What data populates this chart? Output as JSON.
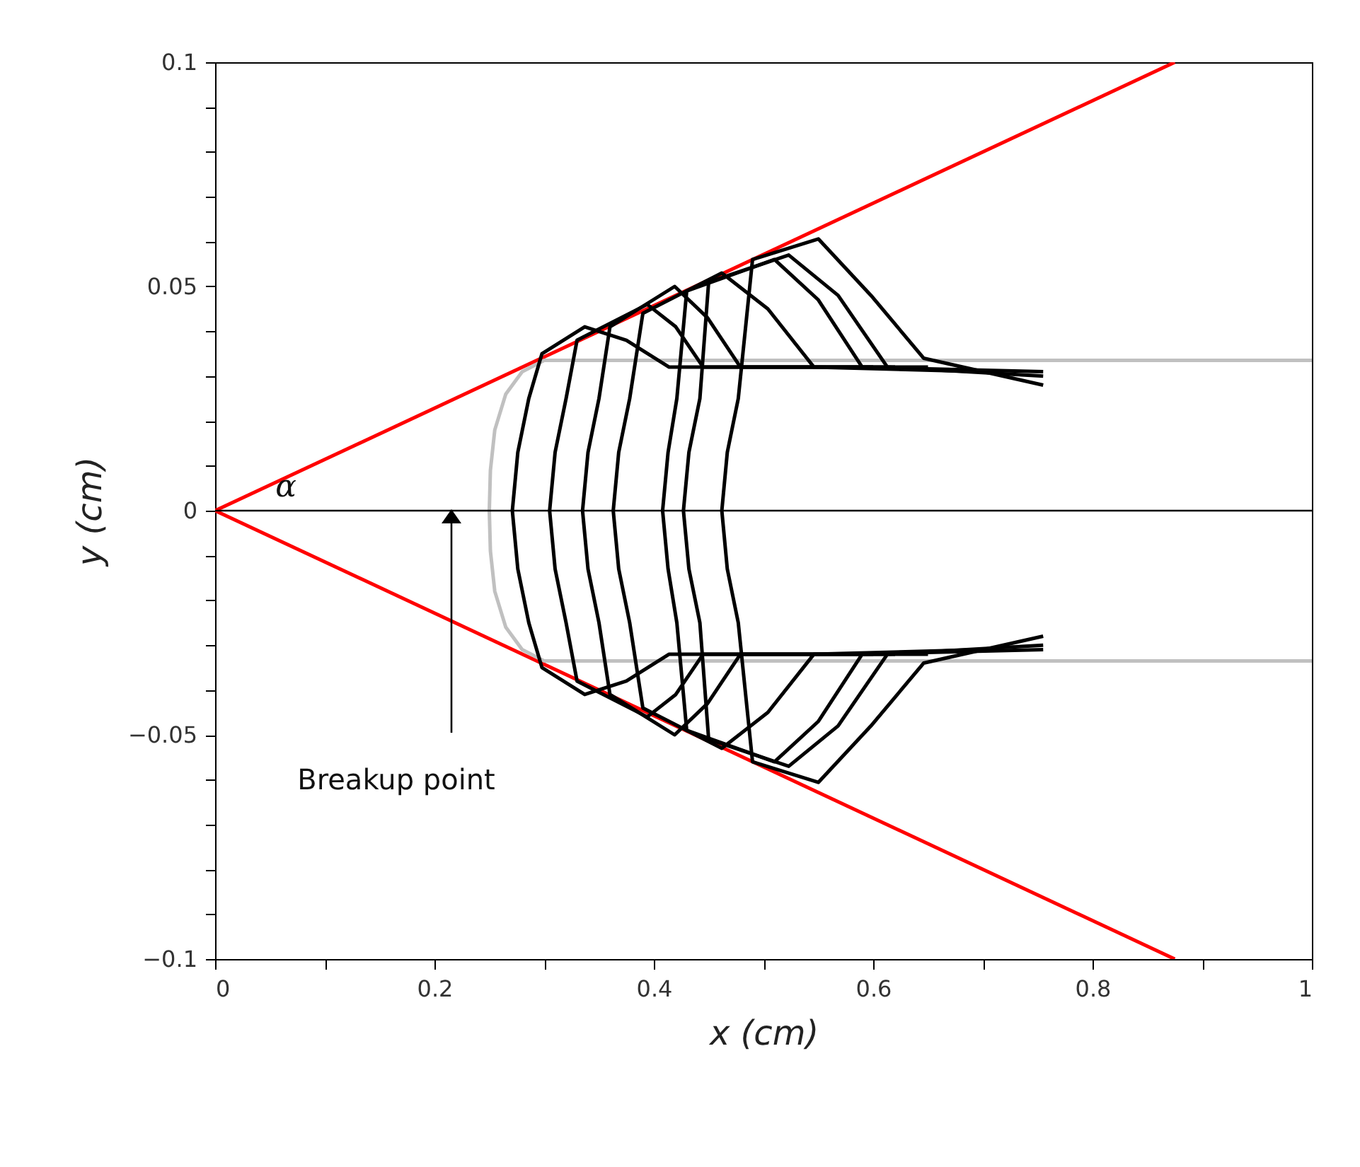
{
  "chart_data": {
    "type": "line",
    "xlabel": "x (cm)",
    "ylabel": "y (cm)",
    "xlim": [
      0,
      1
    ],
    "ylim": [
      -0.1,
      0.1
    ],
    "xticks": [
      0,
      {
        "value": 0.1,
        "label": null
      },
      0.2,
      {
        "value": 0.3,
        "label": null
      },
      0.4,
      {
        "value": 0.5,
        "label": null
      },
      0.6,
      {
        "value": 0.7,
        "label": null
      },
      0.8,
      {
        "value": 0.9,
        "label": null
      },
      1
    ],
    "yticks": [
      {
        "value": -0.1,
        "label": "−0.1"
      },
      {
        "value": -0.09,
        "label": null
      },
      {
        "value": -0.08,
        "label": null
      },
      {
        "value": -0.07,
        "label": null
      },
      {
        "value": -0.06,
        "label": null
      },
      {
        "value": -0.05,
        "label": "−0.05"
      },
      {
        "value": -0.04,
        "label": null
      },
      {
        "value": -0.03,
        "label": null
      },
      {
        "value": -0.02,
        "label": null
      },
      {
        "value": -0.01,
        "label": null
      },
      0,
      {
        "value": 0.01,
        "label": null
      },
      {
        "value": 0.02,
        "label": null
      },
      {
        "value": 0.03,
        "label": null
      },
      {
        "value": 0.04,
        "label": null
      },
      0.05,
      {
        "value": 0.06,
        "label": null
      },
      {
        "value": 0.07,
        "label": null
      },
      {
        "value": 0.08,
        "label": null
      },
      {
        "value": 0.09,
        "label": null
      },
      0.1
    ],
    "series": [
      {
        "color": "#ff0000",
        "x": [
          0,
          0.875
        ],
        "values": [
          0,
          0.1
        ]
      },
      {
        "color": "#ff0000",
        "x": [
          0,
          0.875
        ],
        "values": [
          0,
          -0.1
        ]
      },
      {
        "color": "#c0c0c0",
        "x": [
          1,
          0.3,
          0.28,
          0.265,
          0.255,
          0.251,
          0.25,
          0.251,
          0.255,
          0.265,
          0.28,
          0.3,
          1
        ],
        "values": [
          0.0335,
          0.0335,
          0.031,
          0.026,
          0.018,
          0.009,
          0,
          -0.009,
          -0.018,
          -0.026,
          -0.031,
          -0.0335,
          -0.0335
        ]
      },
      {
        "type": "line",
        "color": "#000000",
        "x": [
          0.6,
          0.414,
          0.375,
          0.337,
          0.298,
          0.286,
          0.276,
          0.271,
          0.276,
          0.286,
          0.298,
          0.337,
          0.375,
          0.414,
          0.6
        ],
        "values": [
          0.032,
          0.032,
          0.038,
          0.041,
          0.035,
          0.025,
          0.013,
          0,
          -0.013,
          -0.025,
          -0.035,
          -0.041,
          -0.038,
          -0.032,
          -0.032
        ]
      },
      {
        "type": "line",
        "color": "#000000",
        "x": [
          0.62,
          0.445,
          0.42,
          0.394,
          0.33,
          0.32,
          0.31,
          0.305,
          0.31,
          0.32,
          0.33,
          0.394,
          0.42,
          0.445,
          0.62
        ],
        "values": [
          0.032,
          0.032,
          0.041,
          0.046,
          0.038,
          0.025,
          0.013,
          0,
          -0.013,
          -0.025,
          -0.038,
          -0.046,
          -0.041,
          -0.032,
          -0.032
        ]
      },
      {
        "type": "line",
        "color": "#000000",
        "x": [
          0.65,
          0.479,
          0.449,
          0.419,
          0.36,
          0.35,
          0.34,
          0.335,
          0.34,
          0.35,
          0.36,
          0.419,
          0.449,
          0.479,
          0.65
        ],
        "values": [
          0.032,
          0.032,
          0.043,
          0.05,
          0.041,
          0.025,
          0.013,
          0,
          -0.013,
          -0.025,
          -0.041,
          -0.05,
          -0.043,
          -0.032,
          -0.032
        ]
      },
      {
        "type": "line",
        "color": "#000000",
        "x": [
          0.7,
          0.546,
          0.504,
          0.462,
          0.39,
          0.378,
          0.368,
          0.363,
          0.368,
          0.378,
          0.39,
          0.462,
          0.504,
          0.546,
          0.7
        ],
        "values": [
          0.031,
          0.032,
          0.045,
          0.053,
          0.044,
          0.025,
          0.013,
          0,
          -0.013,
          -0.025,
          -0.044,
          -0.053,
          -0.045,
          -0.032,
          -0.031
        ]
      },
      {
        "type": "line",
        "color": "#000000",
        "x": [
          0.755,
          0.59,
          0.55,
          0.51,
          0.43,
          0.421,
          0.413,
          0.408,
          0.413,
          0.421,
          0.43,
          0.51,
          0.55,
          0.59,
          0.755
        ],
        "values": [
          0.031,
          0.032,
          0.047,
          0.056,
          0.049,
          0.025,
          0.013,
          0,
          -0.013,
          -0.025,
          -0.049,
          -0.056,
          -0.047,
          -0.032,
          -0.031
        ]
      },
      {
        "type": "line",
        "color": "#000000",
        "x": [
          0.755,
          0.613,
          0.568,
          0.523,
          0.45,
          0.442,
          0.432,
          0.427,
          0.432,
          0.442,
          0.45,
          0.523,
          0.568,
          0.613,
          0.755
        ],
        "values": [
          0.03,
          0.032,
          0.048,
          0.057,
          0.051,
          0.025,
          0.013,
          0,
          -0.013,
          -0.025,
          -0.051,
          -0.057,
          -0.048,
          -0.032,
          -0.03
        ]
      },
      {
        "type": "line",
        "color": "#000000",
        "x": [
          0.755,
          0.646,
          0.598,
          0.55,
          0.49,
          0.477,
          0.467,
          0.462,
          0.467,
          0.477,
          0.49,
          0.55,
          0.598,
          0.646,
          0.755
        ],
        "values": [
          0.028,
          0.034,
          0.048,
          0.0606,
          0.056,
          0.025,
          0.013,
          0,
          -0.013,
          -0.025,
          -0.056,
          -0.0606,
          -0.048,
          -0.034,
          -0.028
        ]
      }
    ],
    "ref_lines": [
      {
        "axis": "y",
        "value": 0,
        "color": "#000000"
      }
    ],
    "annotations": [
      "Breakup point",
      "α"
    ]
  }
}
